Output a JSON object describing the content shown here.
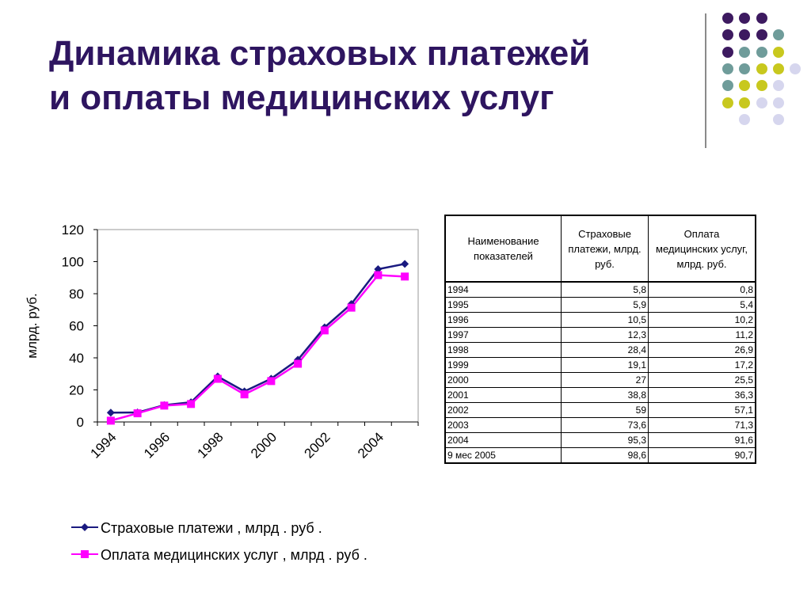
{
  "slide": {
    "title_lines": [
      "Динамика страховых платежей",
      "и оплаты медицинских услуг"
    ]
  },
  "decoration": {
    "dot_colors": {
      "purple": "#3d1a60",
      "teal": "#6f9c9a",
      "yellow": "#c8c81e",
      "lavender": "#d6d6ee"
    }
  },
  "chart_data": {
    "type": "line",
    "title": "",
    "xlabel": "",
    "ylabel": "млрд. руб.",
    "ylim": [
      0,
      120
    ],
    "y_ticks": [
      "0",
      "20",
      "40",
      "60",
      "80",
      "100",
      "120"
    ],
    "x_tick_labels": [
      "1994",
      "1996",
      "1998",
      "2000",
      "2002",
      "2004"
    ],
    "categories": [
      "1994",
      "1995",
      "1996",
      "1997",
      "1998",
      "1999",
      "2000",
      "2001",
      "2002",
      "2003",
      "2004",
      "9 мес 2005"
    ],
    "grid": false,
    "legend": "bottom",
    "series": [
      {
        "name": "Страховые платежи , млрд . руб .",
        "color": "#1a1a80",
        "marker": "diamond",
        "values": [
          5.8,
          5.9,
          10.5,
          12.3,
          28.4,
          19.1,
          27,
          38.8,
          59,
          73.6,
          95.3,
          98.6
        ]
      },
      {
        "name": "Оплата медицинских услуг , млрд . руб .",
        "color": "#ff00ff",
        "marker": "square",
        "values": [
          0.8,
          5.4,
          10.2,
          11.2,
          26.9,
          17.2,
          25.5,
          36.3,
          57.1,
          71.3,
          91.6,
          90.7
        ]
      }
    ]
  },
  "table": {
    "headers": [
      "Наименование показателей",
      "Страховые платежи, млрд. руб.",
      "Оплата медицинских услуг, млрд. руб."
    ],
    "rows": [
      [
        "1994",
        "5,8",
        "0,8"
      ],
      [
        "1995",
        "5,9",
        "5,4"
      ],
      [
        "1996",
        "10,5",
        "10,2"
      ],
      [
        "1997",
        "12,3",
        "11,2"
      ],
      [
        "1998",
        "28,4",
        "26,9"
      ],
      [
        "1999",
        "19,1",
        "17,2"
      ],
      [
        "2000",
        "27",
        "25,5"
      ],
      [
        "2001",
        "38,8",
        "36,3"
      ],
      [
        "2002",
        "59",
        "57,1"
      ],
      [
        "2003",
        "73,6",
        "71,3"
      ],
      [
        "2004",
        "95,3",
        "91,6"
      ],
      [
        "9 мес 2005",
        "98,6",
        "90,7"
      ]
    ]
  }
}
